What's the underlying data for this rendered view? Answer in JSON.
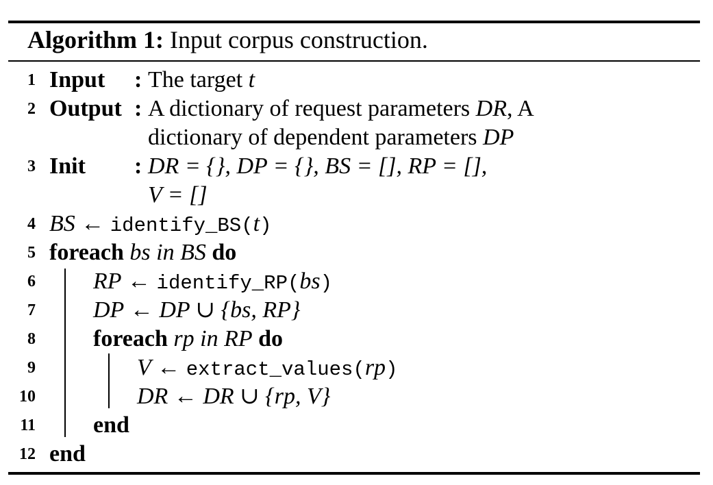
{
  "caption": {
    "label": "Algorithm 1:",
    "title": "Input corpus construction."
  },
  "line_numbers": [
    "1",
    "2",
    "3",
    "4",
    "5",
    "6",
    "7",
    "8",
    "9",
    "10",
    "11",
    "12"
  ],
  "input": {
    "keyword": "Input",
    "colon": ":",
    "text": "The target",
    "var": "t"
  },
  "output": {
    "keyword": "Output",
    "colon": ":",
    "text1": "A dictionary of request parameters",
    "var1": "DR",
    "text1b": ", A",
    "text2": "dictionary of dependent parameters",
    "var2": "DP"
  },
  "init": {
    "keyword": "Init",
    "colon": ":",
    "line1": "DR = {}, DP = {}, BS = [], RP = [],",
    "line2": "V = []"
  },
  "l4": {
    "lhs": "BS",
    "arrow": " ← ",
    "fn": "identify_BS(",
    "arg": "t",
    "close": ")"
  },
  "l5": {
    "kw1": "foreach",
    "var": "bs",
    "kin": "in",
    "coll": "BS",
    "kw2": "do"
  },
  "l6": {
    "lhs": "RP",
    "arrow": " ← ",
    "fn": "identify_RP(",
    "arg": "bs",
    "close": ")"
  },
  "l7": {
    "lhs": "DP",
    "arrow": " ← ",
    "rhs": "DP ∪ {bs, RP}"
  },
  "l8": {
    "kw1": "foreach",
    "var": "rp",
    "kin": "in",
    "coll": "RP",
    "kw2": "do"
  },
  "l9": {
    "lhs": "V",
    "arrow": " ← ",
    "fn": "extract_values(",
    "arg": "rp",
    "close": ")"
  },
  "l10": {
    "lhs": "DR",
    "arrow": " ← ",
    "rhs": "DR ∪ {rp, V}"
  },
  "l11": {
    "kw": "end"
  },
  "l12": {
    "kw": "end"
  }
}
